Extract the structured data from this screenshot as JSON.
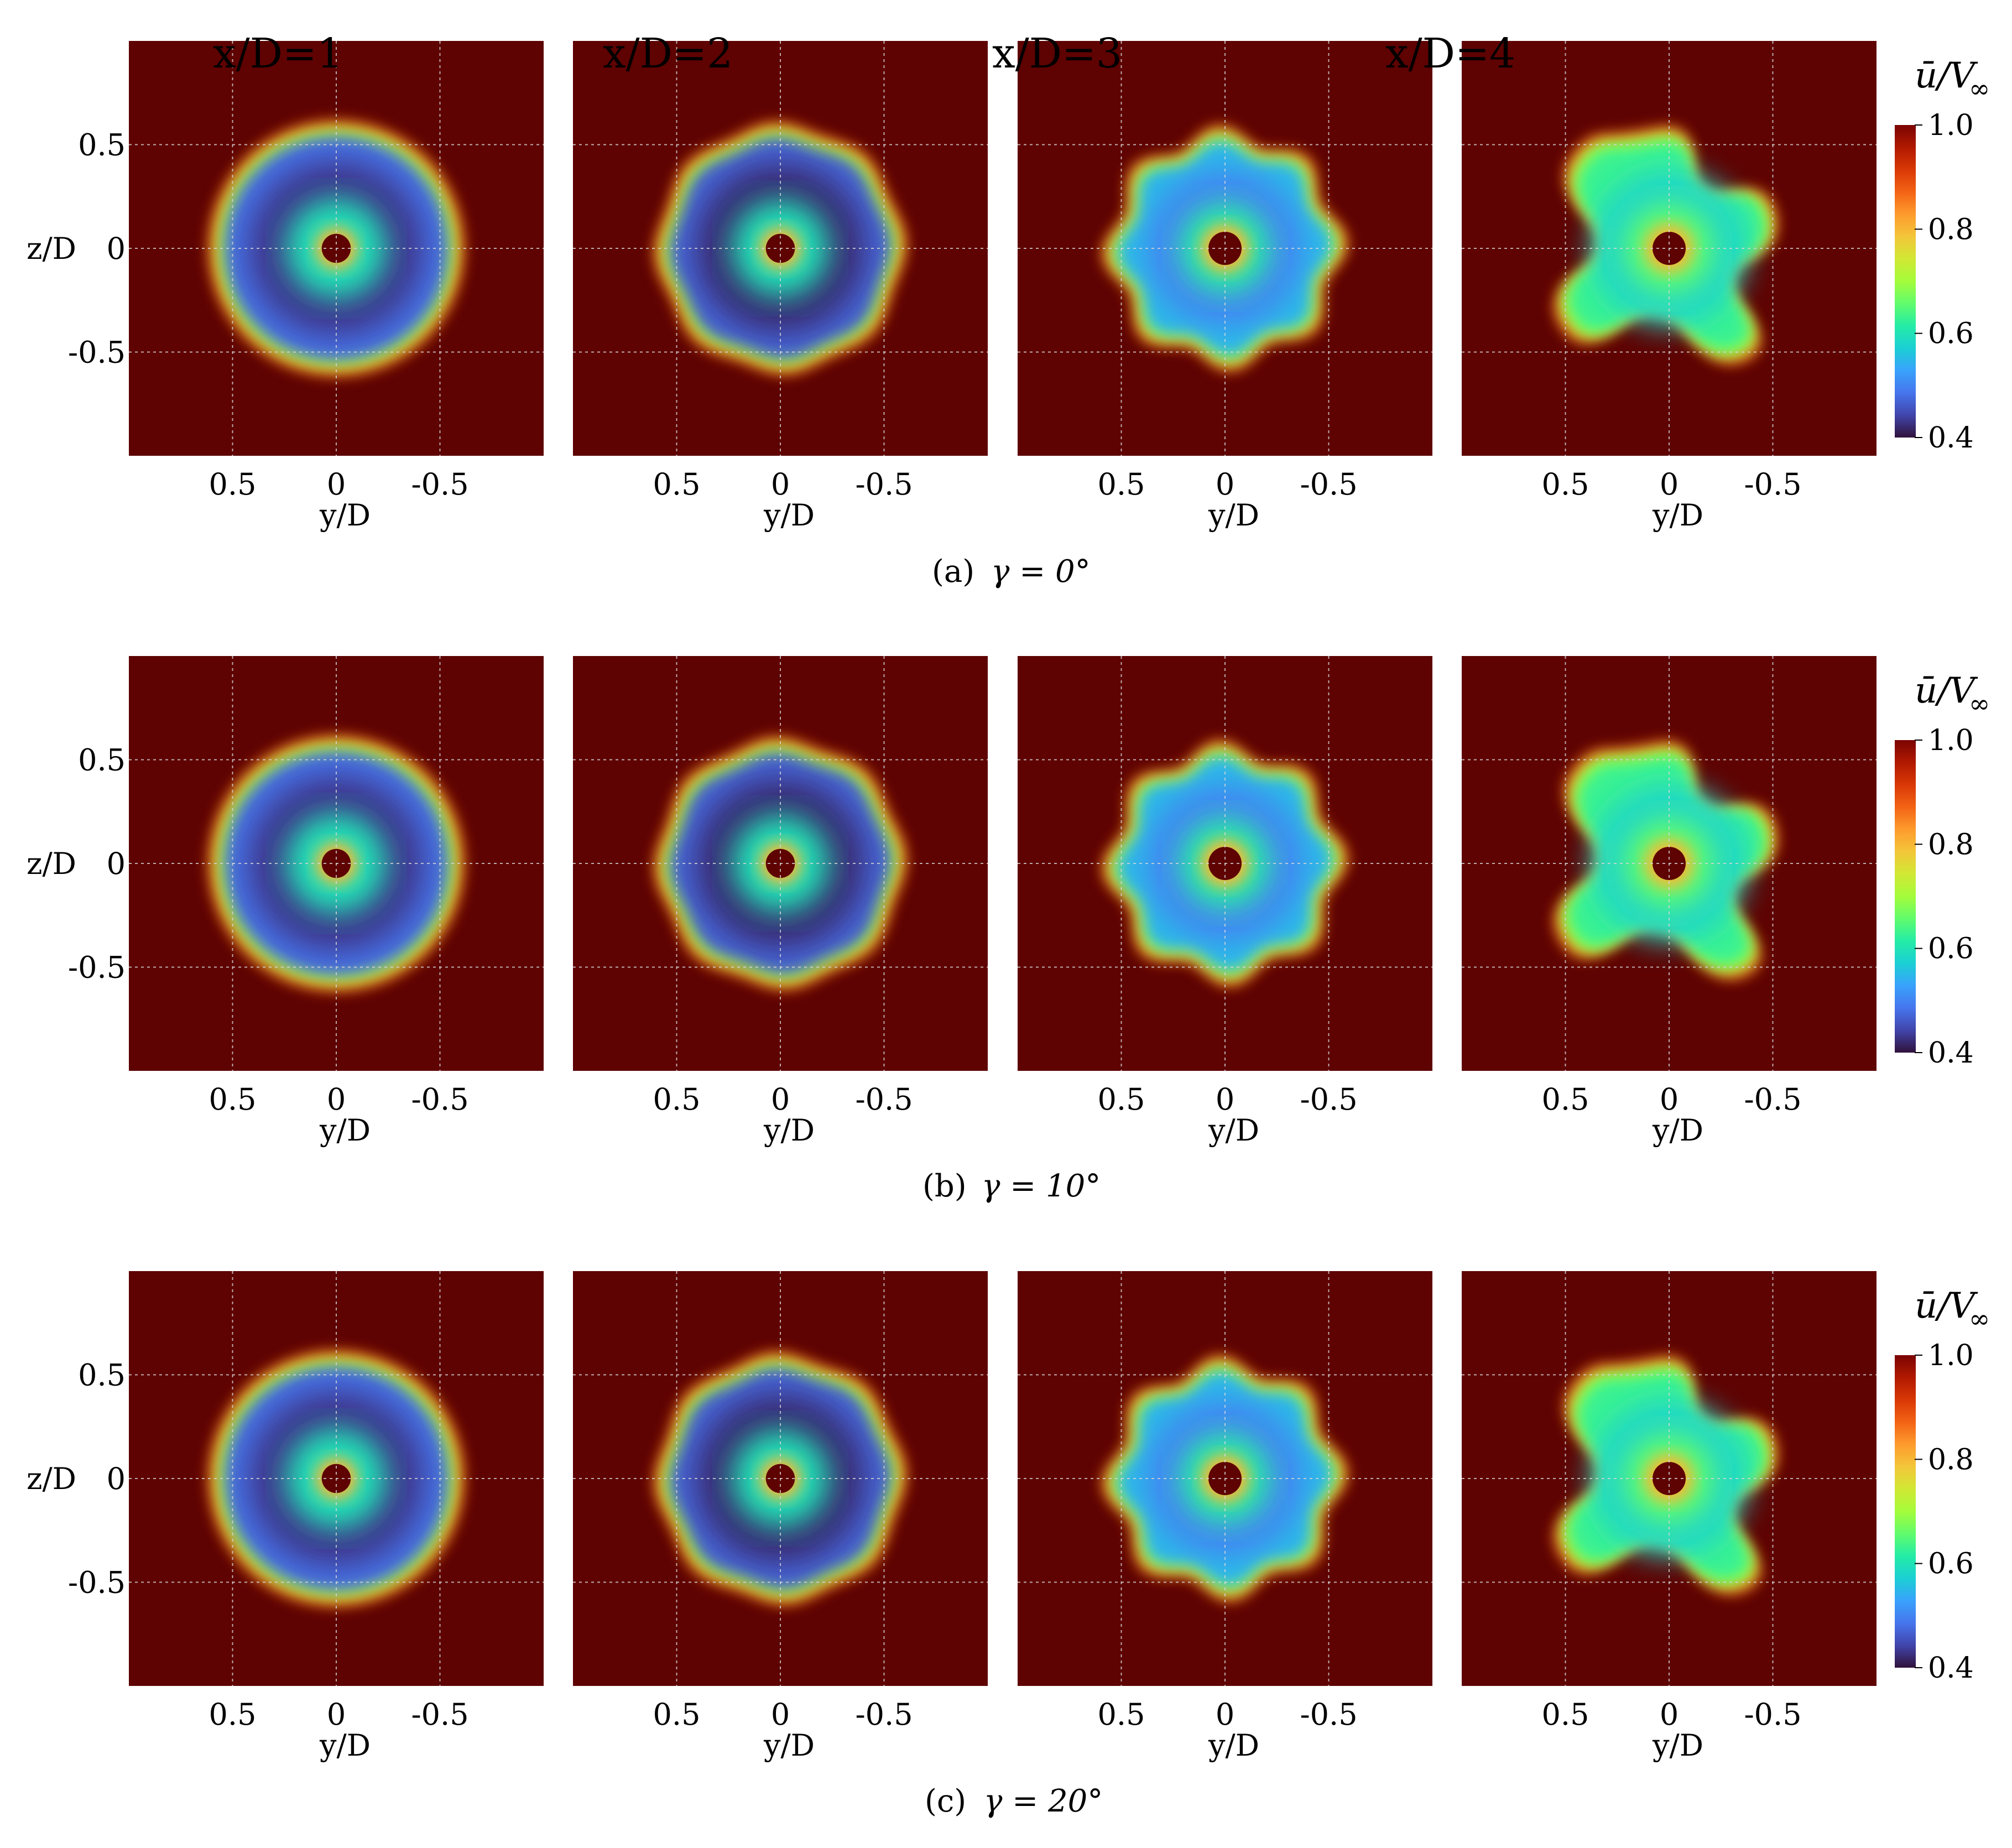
{
  "figure": {
    "station_labels": [
      "x/D=1",
      "x/D=2",
      "x/D=3",
      "x/D=4"
    ],
    "x_axis_label": "y/D",
    "y_axis_label": "z/D",
    "x_tick_labels": [
      "0.5",
      "0",
      "-0.5"
    ],
    "y_tick_labels": [
      "0.5",
      "0",
      "-0.5"
    ],
    "colorbar": {
      "title_main": "ū/V",
      "title_sub": "∞",
      "tick_labels": [
        "1.0",
        "0.8",
        "0.6",
        "0.4"
      ]
    },
    "rows": [
      {
        "caption_prefix": "(a)",
        "caption_gamma": "γ = 0°"
      },
      {
        "caption_prefix": "(b)",
        "caption_gamma": "γ = 10°"
      },
      {
        "caption_prefix": "(c)",
        "caption_gamma": "γ = 20°"
      }
    ]
  },
  "chart_data": {
    "type": "heatmap",
    "quantity": "ū/V∞",
    "colorscale": [
      "#30123b",
      "#4145ab",
      "#4675ed",
      "#39a2fc",
      "#1bcfd4",
      "#24eca6",
      "#61fc6c",
      "#a4fc3b",
      "#d1e834",
      "#f3c63a",
      "#fe9b2d",
      "#f36315",
      "#d93806",
      "#b11901",
      "#7a0402"
    ],
    "colorbar_range": [
      0.4,
      1.0
    ],
    "colorbar_ticks": [
      0.4,
      0.6,
      0.8,
      1.0
    ],
    "background_color": "#5e0202",
    "x_axis": {
      "label": "y/D",
      "ticks": [
        0.5,
        0,
        -0.5
      ],
      "range": [
        1.0,
        -1.0
      ],
      "reversed": true
    },
    "y_axis": {
      "label": "z/D",
      "ticks": [
        0.5,
        0,
        -0.5
      ],
      "range": [
        -1.0,
        1.0
      ]
    },
    "grid": true,
    "stations_x_over_D": [
      1,
      2,
      3,
      4
    ],
    "yaw_angles_deg": [
      0,
      10,
      20
    ],
    "wake_description": [
      {
        "station": 1,
        "shape": "circular",
        "outer_radius": 0.58,
        "hub_radius": 0.07,
        "lobes": 0,
        "core_value": 0.43,
        "ring_value": 0.6
      },
      {
        "station": 2,
        "shape": "slightly lobed",
        "outer_radius": 0.56,
        "hub_radius": 0.07,
        "lobes": 8,
        "core_value": 0.42,
        "ring_value": 0.6
      },
      {
        "station": 3,
        "shape": "8-lobed star",
        "outer_radius": 0.52,
        "hub_radius": 0.08,
        "lobes": 8,
        "core_value": 0.5,
        "ring_value": 0.62
      },
      {
        "station": 4,
        "shape": "4-armed windmill",
        "outer_radius": 0.52,
        "hub_radius": 0.08,
        "lobes": 4,
        "core_value": 0.58,
        "ring_value": 0.66
      }
    ]
  }
}
